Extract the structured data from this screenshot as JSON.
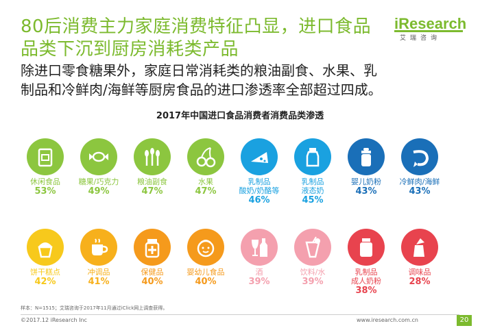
{
  "header": {
    "title_line1": "80后消费主力家庭消费特征凸显，进口食品",
    "title_line2": "品类下沉到厨房消耗类产品",
    "subtitle_line1": "除进口零食糖果外，家庭日常消耗类的粮油副食、水果、乳",
    "subtitle_line2": "制品和冷鲜肉/海鲜等厨房食品的进口渗透率全部超过四成。"
  },
  "logo": {
    "brand_i": "i",
    "brand_rest": "Research",
    "sub": "艾瑞咨询"
  },
  "chart_data": {
    "type": "table",
    "title": "2017年中国进口食品消费者消费品类渗透",
    "unit": "%",
    "items": [
      {
        "label": "休闲食品",
        "label2": "",
        "value": 53,
        "display": "53%",
        "color": "#8cc63f",
        "icon": "snack-icon"
      },
      {
        "label": "糖果/巧克力",
        "label2": "",
        "value": 49,
        "display": "49%",
        "color": "#8cc63f",
        "icon": "candy-icon"
      },
      {
        "label": "粮油副食",
        "label2": "",
        "value": 47,
        "display": "47%",
        "color": "#8cc63f",
        "icon": "wheat-icon"
      },
      {
        "label": "水果",
        "label2": "",
        "value": 47,
        "display": "47%",
        "color": "#8cc63f",
        "icon": "cherry-icon"
      },
      {
        "label": "乳制品",
        "label2": "酸奶/奶酪等",
        "value": 46,
        "display": "46%",
        "color": "#1aa1e0",
        "icon": "cheese-icon"
      },
      {
        "label": "乳制品",
        "label2": "液态奶",
        "value": 45,
        "display": "45%",
        "color": "#1aa1e0",
        "icon": "milk-bottle-icon"
      },
      {
        "label": "婴儿奶粉",
        "label2": "",
        "value": 43,
        "display": "43%",
        "color": "#1a6fb8",
        "icon": "baby-bottle-icon"
      },
      {
        "label": "冷鲜肉/海鲜",
        "label2": "",
        "value": 43,
        "display": "43%",
        "color": "#1a6fb8",
        "icon": "shrimp-icon"
      },
      {
        "label": "饼干糕点",
        "label2": "",
        "value": 42,
        "display": "42%",
        "color": "#f7c91c",
        "icon": "cupcake-icon"
      },
      {
        "label": "冲调品",
        "label2": "",
        "value": 41,
        "display": "41%",
        "color": "#f7b01c",
        "icon": "coffee-cup-icon"
      },
      {
        "label": "保健品",
        "label2": "",
        "value": 40,
        "display": "40%",
        "color": "#f59a1c",
        "icon": "supplement-jar-icon"
      },
      {
        "label": "婴幼儿食品",
        "label2": "",
        "value": 40,
        "display": "40%",
        "color": "#f59a1c",
        "icon": "baby-face-icon"
      },
      {
        "label": "酒",
        "label2": "",
        "value": 39,
        "display": "39%",
        "color": "#f4a0ae",
        "icon": "wine-icon"
      },
      {
        "label": "饮料/水",
        "label2": "",
        "value": 39,
        "display": "39%",
        "color": "#f4a0ae",
        "icon": "drink-icon"
      },
      {
        "label": "乳制品",
        "label2": "成人奶粉",
        "value": 38,
        "display": "38%",
        "color": "#e8434e",
        "icon": "powder-jar-icon"
      },
      {
        "label": "调味品",
        "label2": "",
        "value": 28,
        "display": "28%",
        "color": "#e8434e",
        "icon": "seasoning-icon"
      }
    ]
  },
  "footer": {
    "footnote": "样本：N=1515；艾瑞咨询于2017年11月通过iClick网上调查获得。",
    "copyright": "©2017.12 iResearch Inc",
    "url": "www.iresearch.com.cn",
    "page": "20"
  }
}
